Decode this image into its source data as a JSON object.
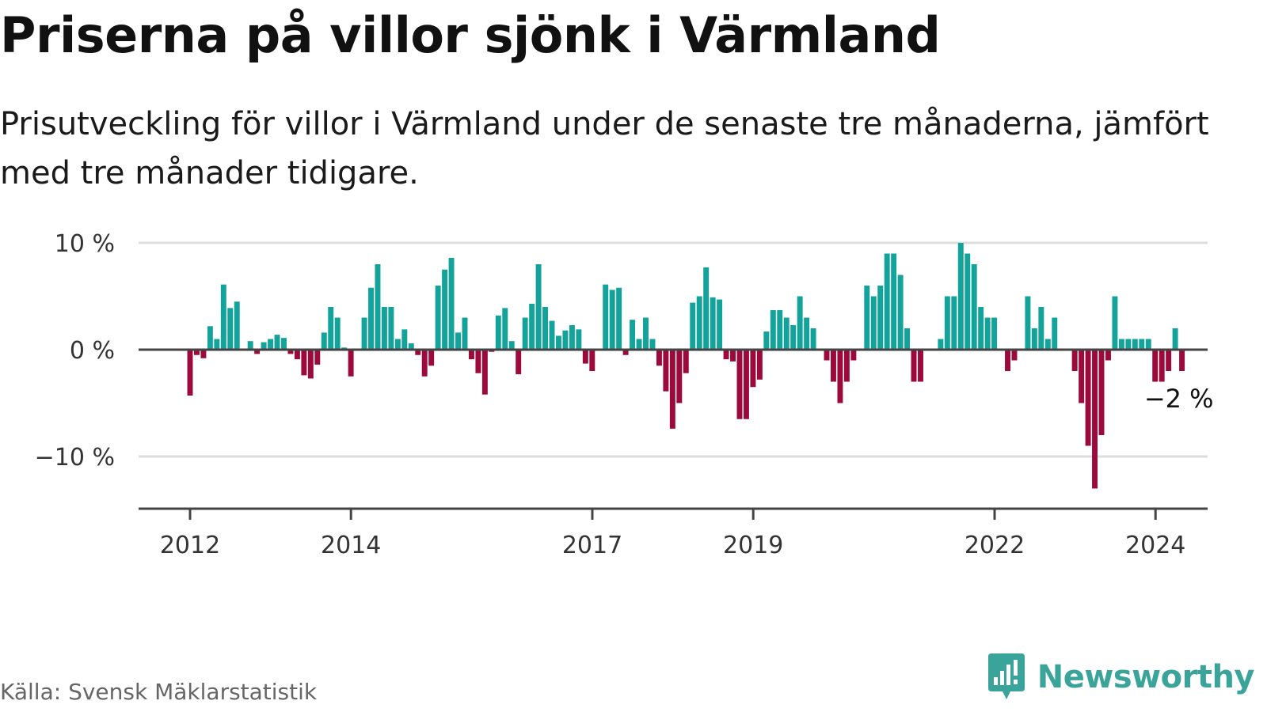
{
  "header": {
    "title": "Priserna på villor sjönk i Värmland",
    "subtitle": "Prisutveckling för villor i Värmland under de senaste tre månaderna, jämfört med tre månader tidigare."
  },
  "footer": {
    "source": "Källa: Svensk Mäklarstatistik",
    "brand": "Newsworthy",
    "brand_icon": "newsworthy-logo-icon"
  },
  "colors": {
    "positive": "#14a39a",
    "negative": "#9c0a3c",
    "baseline": "#444444",
    "grid": "#dddddd",
    "brand": "#3aa39a"
  },
  "chart_data": {
    "type": "bar",
    "title": "Priserna på villor sjönk i Värmland",
    "xlabel": "",
    "ylabel": "",
    "unit": "%",
    "ylim": [
      -15,
      10
    ],
    "yticks": [
      10,
      0,
      -10
    ],
    "ytick_labels": [
      "10 %",
      "0 %",
      "−10 %"
    ],
    "xtick_labels": [
      "2012",
      "2014",
      "2017",
      "2019",
      "2022",
      "2024"
    ],
    "xtick_positions": [
      2012.0,
      2014.0,
      2017.0,
      2019.0,
      2022.0,
      2024.0
    ],
    "x_start": 2012.0,
    "x_step": 0.0833,
    "values": [
      -4.3,
      -0.5,
      -0.8,
      2.2,
      1.0,
      6.1,
      3.9,
      4.5,
      0,
      0.8,
      -0.4,
      0.7,
      1.0,
      1.4,
      1.1,
      -0.4,
      -0.9,
      -2.4,
      -2.7,
      -1.4,
      1.6,
      4.0,
      3.0,
      0.2,
      -2.5,
      0,
      3.0,
      5.8,
      8.0,
      4.0,
      4.0,
      1.0,
      1.9,
      0.6,
      -0.5,
      -2.5,
      -1.5,
      6.0,
      7.5,
      8.6,
      1.6,
      3.0,
      -0.9,
      -2.2,
      -4.2,
      -0.2,
      3.2,
      3.9,
      0.8,
      -2.3,
      3.0,
      4.3,
      8.0,
      4.0,
      2.7,
      1.3,
      1.8,
      2.3,
      1.9,
      -1.3,
      -2.0,
      0,
      6.1,
      5.6,
      5.8,
      -0.5,
      2.8,
      1.0,
      3.0,
      1.0,
      -1.5,
      -3.9,
      -7.4,
      -5.0,
      -2.2,
      4.4,
      5.0,
      7.7,
      4.9,
      4.7,
      -0.9,
      -1.1,
      -6.5,
      -6.5,
      -3.5,
      -2.8,
      1.7,
      3.7,
      3.7,
      3.0,
      2.3,
      5.0,
      3.0,
      2.0,
      0,
      -1.0,
      -3.0,
      -5.0,
      -3.0,
      -1.0,
      0,
      6.0,
      5.0,
      6.0,
      9.0,
      9.0,
      7.0,
      2.0,
      -3.0,
      -3.0,
      0,
      0,
      1.0,
      5.0,
      5.0,
      10.0,
      9.0,
      8.0,
      4.0,
      3.0,
      3.0,
      0,
      -2.0,
      -1.0,
      0,
      5.0,
      2.0,
      4.0,
      1.0,
      3.0,
      0,
      0,
      -2.0,
      -5.0,
      -9.0,
      -13.0,
      -8.0,
      -1.0,
      5.0,
      1.0,
      1.0,
      1.0,
      1.0,
      1.0,
      -3.0,
      -3.0,
      -2.0,
      2.0,
      -2.0
    ],
    "annotations": [
      {
        "label": "−2 %",
        "value": -2
      }
    ]
  }
}
